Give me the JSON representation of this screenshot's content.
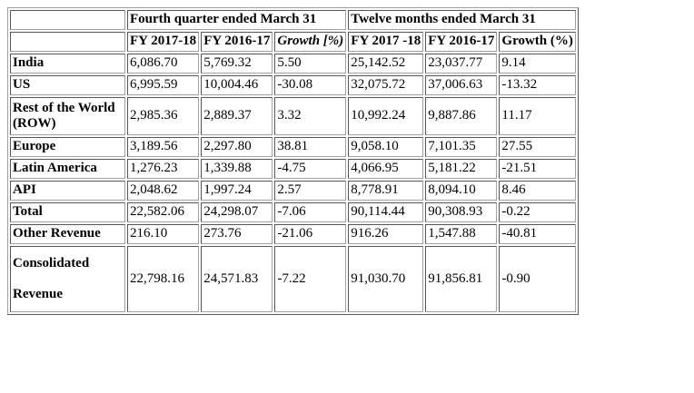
{
  "table": {
    "group_headers": [
      "Fourth quarter ended March 31",
      "Twelve months ended March 31"
    ],
    "column_headers": [
      "FY 2017-18",
      "FY 2016-17",
      "Growth [%)",
      "FY 2017 -18",
      "FY 2016-17",
      "Growth (%)"
    ],
    "rows": [
      {
        "label": "India",
        "values": [
          "6,086.70",
          "5,769.32",
          "5.50",
          "25,142.52",
          "23,037.77",
          "9.14"
        ]
      },
      {
        "label": "US",
        "values": [
          "6,995.59",
          "10,004.46",
          "-30.08",
          "32,075.72",
          "37,006.63",
          "-13.32"
        ]
      },
      {
        "label_line1": "Rest of the World",
        "label_line2": "(ROW)",
        "values": [
          "2,985.36",
          "2,889.37",
          "3.32",
          "10,992.24",
          "9,887.86",
          "11.17"
        ]
      },
      {
        "label": "Europe",
        "values": [
          "3,189.56",
          "2,297.80",
          "38.81",
          "9,058.10",
          "7,101.35",
          "27.55"
        ]
      },
      {
        "label": "Latin America",
        "values": [
          "1,276.23",
          "1,339.88",
          "-4.75",
          "4,066.95",
          "5,181.22",
          "-21.51"
        ]
      },
      {
        "label": "API",
        "values": [
          "2,048.62",
          "1,997.24",
          "2.57",
          "8,778.91",
          "8,094.10",
          "8.46"
        ]
      },
      {
        "label": "Total",
        "values": [
          "22,582.06",
          "24,298.07",
          "-7.06",
          "90,114.44",
          "90,308.93",
          "-0.22"
        ]
      },
      {
        "label": "Other Revenue",
        "values": [
          "216.10",
          "273.76",
          "-21.06",
          "916.26",
          "1,547.88",
          "-40.81"
        ]
      },
      {
        "label_line1": "Consolidated",
        "label_line2": "Revenue",
        "values": [
          "22,798.16",
          "24,571.83",
          "-7.22",
          "91,030.70",
          "91,856.81",
          "-0.90"
        ]
      }
    ]
  }
}
